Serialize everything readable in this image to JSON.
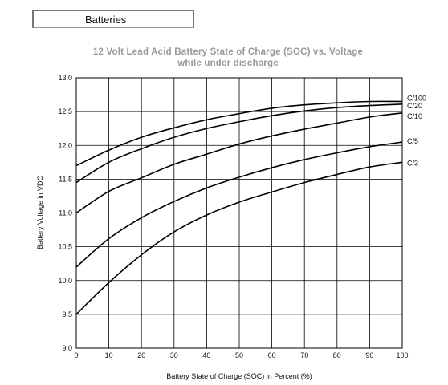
{
  "tab": {
    "label": "Batteries"
  },
  "chart_data": {
    "type": "line",
    "title": "12 Volt Lead Acid Battery State of Charge (SOC) vs. Voltage",
    "subtitle": "while under discharge",
    "xlabel": "Battery State of Charge (SOC) in Percent (%)",
    "ylabel": "Battery Voltage in VDC",
    "xlim": [
      0,
      100
    ],
    "ylim": [
      9.0,
      13.0
    ],
    "x_ticks": [
      0,
      10,
      20,
      30,
      40,
      50,
      60,
      70,
      80,
      90,
      100
    ],
    "y_ticks": [
      9.0,
      9.5,
      10.0,
      10.5,
      11.0,
      11.5,
      12.0,
      12.5,
      13.0
    ],
    "y_tick_labels": [
      "9.0",
      "9.5",
      "10.0",
      "10.5",
      "11.0",
      "11.5",
      "12.0",
      "12.5",
      "13.0"
    ],
    "grid": true,
    "x": [
      0,
      10,
      20,
      30,
      40,
      50,
      60,
      70,
      80,
      90,
      100
    ],
    "series": [
      {
        "name": "C/100",
        "values": [
          11.7,
          11.93,
          12.12,
          12.26,
          12.38,
          12.47,
          12.55,
          12.6,
          12.63,
          12.65,
          12.65
        ]
      },
      {
        "name": "C/20",
        "values": [
          11.45,
          11.75,
          11.95,
          12.12,
          12.25,
          12.35,
          12.44,
          12.51,
          12.56,
          12.59,
          12.61
        ]
      },
      {
        "name": "C/10",
        "values": [
          11.0,
          11.32,
          11.52,
          11.72,
          11.87,
          12.02,
          12.14,
          12.24,
          12.33,
          12.42,
          12.48
        ]
      },
      {
        "name": "C/5",
        "values": [
          10.2,
          10.62,
          10.93,
          11.17,
          11.37,
          11.53,
          11.67,
          11.79,
          11.89,
          11.98,
          12.05
        ]
      },
      {
        "name": "C/3",
        "values": [
          9.5,
          9.97,
          10.38,
          10.72,
          10.97,
          11.16,
          11.31,
          11.45,
          11.57,
          11.68,
          11.75
        ]
      }
    ]
  }
}
